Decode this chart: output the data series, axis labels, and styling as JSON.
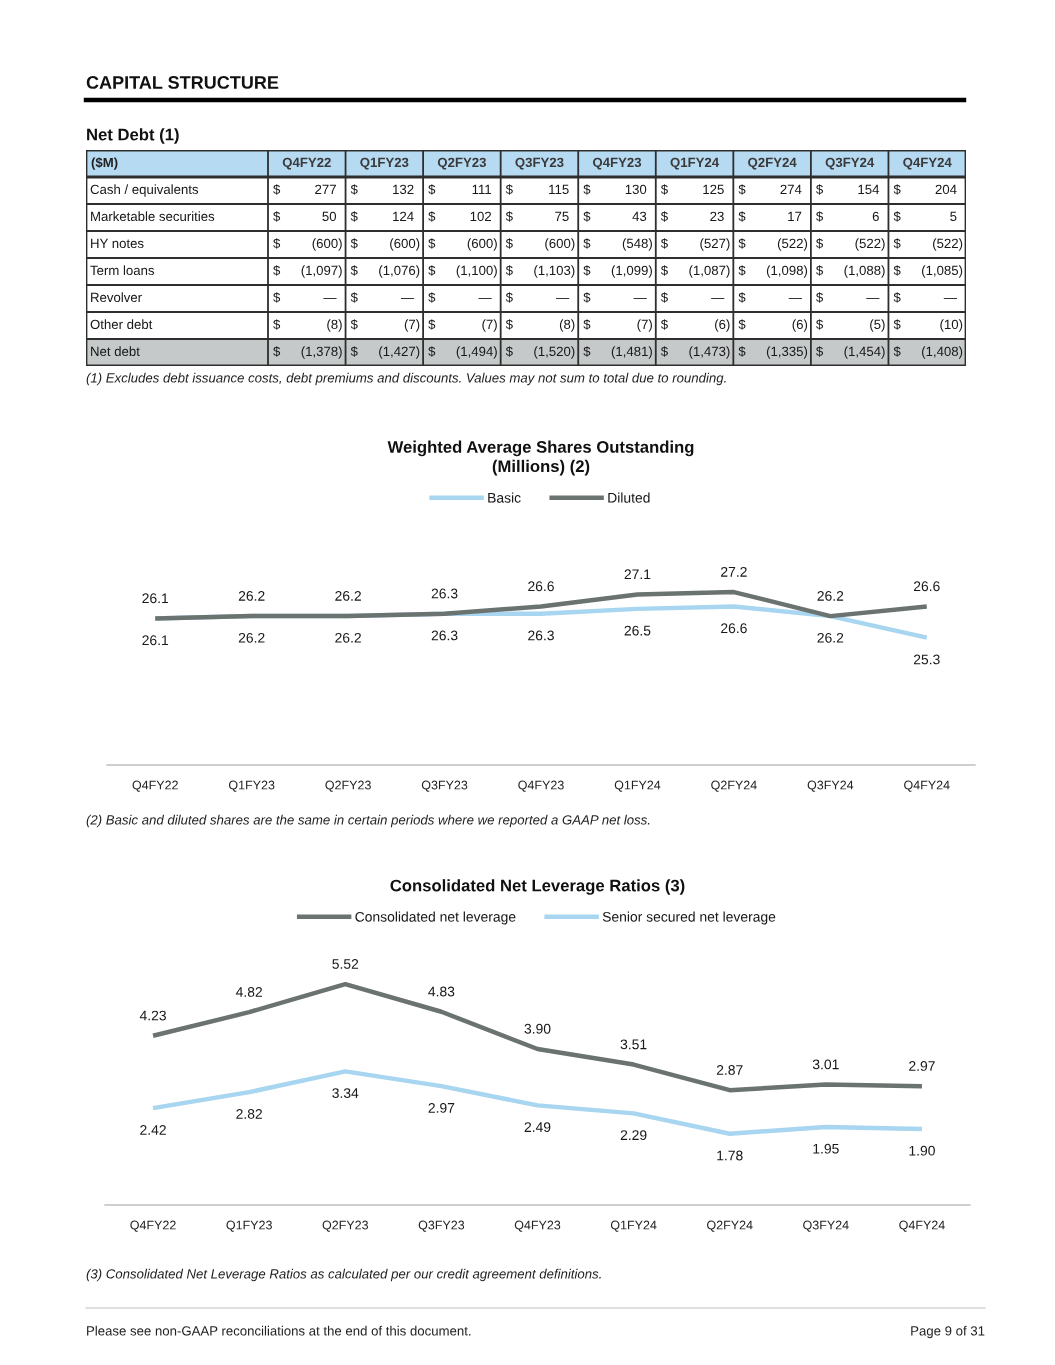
{
  "chart_data": [
    {
      "type": "other",
      "title": "CAPITAL STRUCTURE",
      "subtitle": "Net Debt (1)",
      "ylabel": "($M)",
      "categories": [
        "Q4FY22",
        "Q1FY23",
        "Q2FY23",
        "Q3FY23",
        "Q4FY23",
        "Q1FY24",
        "Q2FY24",
        "Q3FY24",
        "Q4FY24"
      ],
      "series": [
        {
          "name": "Cash / equivalents",
          "values": [
            277,
            132,
            111,
            115,
            130,
            125,
            274,
            154,
            204
          ],
          "value_labels": [
            "277",
            "132",
            "111",
            "115",
            "130",
            "125",
            "274",
            "154",
            "204"
          ]
        },
        {
          "name": "Marketable securities",
          "values": [
            50,
            124,
            102,
            75,
            43,
            23,
            17,
            6,
            5
          ],
          "value_labels": [
            "50",
            "124",
            "102",
            "75",
            "43",
            "23",
            "17",
            "6",
            "5"
          ]
        },
        {
          "name": "HY notes",
          "values": [
            -600,
            -600,
            -600,
            -600,
            -548,
            -527,
            -522,
            -522,
            -522
          ],
          "value_labels": [
            "(600)",
            "(600)",
            "(600)",
            "(600)",
            "(548)",
            "(527)",
            "(522)",
            "(522)",
            "(522)"
          ]
        },
        {
          "name": "Term loans",
          "values": [
            -1097,
            -1076,
            -1100,
            -1103,
            -1099,
            -1087,
            -1098,
            -1088,
            -1085
          ],
          "value_labels": [
            "(1,097)",
            "(1,076)",
            "(1,100)",
            "(1,103)",
            "(1,099)",
            "(1,087)",
            "(1,098)",
            "(1,088)",
            "(1,085)"
          ]
        },
        {
          "name": "Revolver",
          "values": [
            null,
            null,
            null,
            null,
            null,
            null,
            null,
            null,
            null
          ],
          "value_labels": [
            "—",
            "—",
            "—",
            "—",
            "—",
            "—",
            "—",
            "—",
            "—"
          ]
        },
        {
          "name": "Other debt",
          "values": [
            -8,
            -7,
            -7,
            -8,
            -7,
            -6,
            -6,
            -5,
            -10
          ],
          "value_labels": [
            "(8)",
            "(7)",
            "(7)",
            "(8)",
            "(7)",
            "(6)",
            "(6)",
            "(5)",
            "(10)"
          ]
        },
        {
          "name": "Net debt",
          "values": [
            -1378,
            -1427,
            -1494,
            -1520,
            -1481,
            -1473,
            -1335,
            -1454,
            -1408
          ],
          "value_labels": [
            "(1,378)",
            "(1,427)",
            "(1,494)",
            "(1,520)",
            "(1,481)",
            "(1,473)",
            "(1,335)",
            "(1,454)",
            "(1,408)"
          ]
        }
      ],
      "annotations": [
        "$",
        "(1) Excludes debt issuance costs, debt premiums and discounts. Values may not sum to total due to rounding."
      ]
    },
    {
      "type": "line",
      "title": "Weighted Average Shares Outstanding\n(Millions) (2)",
      "categories": [
        "Q4FY22",
        "Q1FY23",
        "Q2FY23",
        "Q3FY23",
        "Q4FY23",
        "Q1FY24",
        "Q2FY24",
        "Q3FY24",
        "Q4FY24"
      ],
      "series": [
        {
          "name": "Basic",
          "color": "#a8d5ef",
          "values": [
            26.1,
            26.2,
            26.2,
            26.3,
            26.3,
            26.5,
            26.6,
            26.2,
            25.3
          ]
        },
        {
          "name": "Diluted",
          "color": "#6b7370",
          "values": [
            26.1,
            26.2,
            26.2,
            26.3,
            26.6,
            27.1,
            27.2,
            26.2,
            26.6
          ]
        }
      ],
      "data_labels": true,
      "legend": "top",
      "tick_labels": "x",
      "annotations": [
        "(2) Basic and diluted shares are the same in certain periods where we reported a GAAP net loss."
      ]
    },
    {
      "type": "line",
      "title": "Consolidated Net Leverage Ratios (3)",
      "categories": [
        "Q4FY22",
        "Q1FY23",
        "Q2FY23",
        "Q3FY23",
        "Q4FY23",
        "Q1FY24",
        "Q2FY24",
        "Q3FY24",
        "Q4FY24"
      ],
      "series": [
        {
          "name": "Consolidated net leverage",
          "color": "#6b7370",
          "values": [
            4.23,
            4.82,
            5.52,
            4.83,
            3.9,
            3.51,
            2.87,
            3.01,
            2.97
          ],
          "value_labels": [
            "4.23",
            "4.82",
            "5.52",
            "4.83",
            "3.90",
            "3.51",
            "2.87",
            "3.01",
            "2.97"
          ]
        },
        {
          "name": "Senior secured net leverage",
          "color": "#a8d5ef",
          "values": [
            2.42,
            2.82,
            3.34,
            2.97,
            2.49,
            2.29,
            1.78,
            1.95,
            1.9
          ],
          "value_labels": [
            "2.42",
            "2.82",
            "3.34",
            "2.97",
            "2.49",
            "2.29",
            "1.78",
            "1.95",
            "1.90"
          ]
        }
      ],
      "legend": "top",
      "tick_labels": "x",
      "annotations": [
        "(3) Consolidated Net Leverage Ratios as calculated per our credit agreement definitions.",
        "Please see non-GAAP reconciliations at the end of this document.",
        "Page 9 of 31"
      ]
    }
  ]
}
